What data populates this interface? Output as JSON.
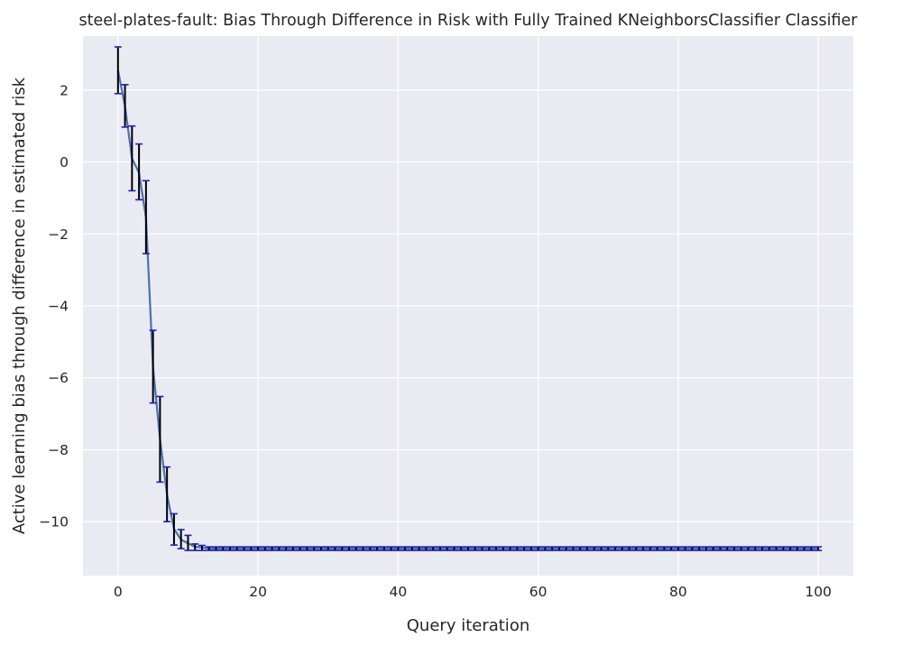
{
  "chart_data": {
    "type": "line",
    "title": "steel-plates-fault: Bias Through Difference in Risk with Fully Trained KNeighborsClassifier Classifier",
    "xlabel": "Query iteration",
    "ylabel": "Active learning bias through difference in estimated risk",
    "xlim": [
      -5,
      105
    ],
    "ylim": [
      -11.5,
      3.5
    ],
    "xticks": [
      0,
      20,
      40,
      60,
      80,
      100
    ],
    "yticks": [
      2,
      0,
      -2,
      -4,
      -6,
      -8,
      -10
    ],
    "grid": true,
    "background": "#eaeaf2",
    "line_color": "#4c72b0",
    "errorbar_color": "#000000",
    "cap_color": "#1f1fbf",
    "series": [
      {
        "x_start": 0,
        "x_end": 100,
        "mean": [
          2.55,
          1.55,
          0.1,
          -0.3,
          -1.55,
          -5.7,
          -7.7,
          -9.25,
          -10.2,
          -10.5,
          -10.6,
          -10.7,
          -10.72
        ],
        "mean_tail": -10.75,
        "lower": [
          1.9,
          0.97,
          -0.8,
          -1.05,
          -2.55,
          -6.7,
          -8.9,
          -10.0,
          -10.65,
          -10.75,
          -10.8,
          -10.8,
          -10.8
        ],
        "lower_tail": -10.8,
        "upper": [
          3.2,
          2.15,
          1.0,
          0.5,
          -0.52,
          -4.68,
          -6.52,
          -8.48,
          -9.78,
          -10.22,
          -10.38,
          -10.62,
          -10.66
        ],
        "upper_tail": -10.7
      }
    ]
  }
}
